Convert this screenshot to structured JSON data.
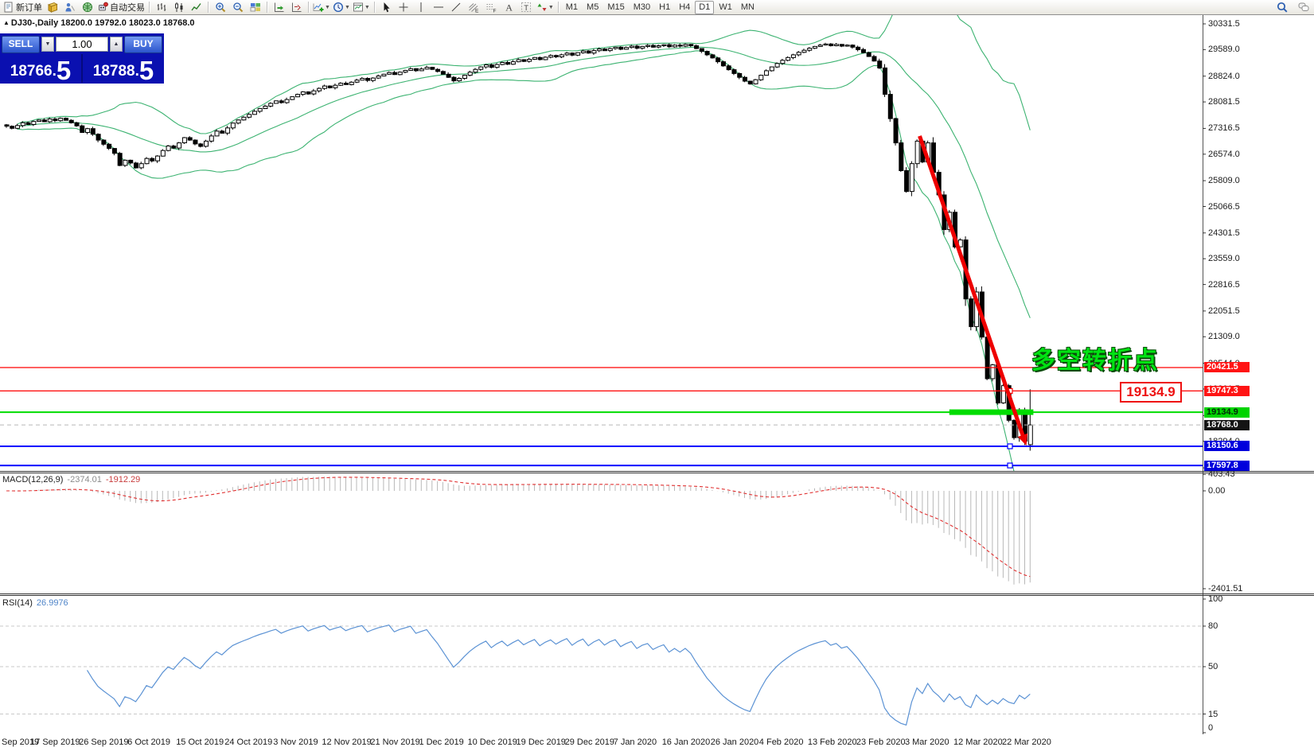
{
  "toolbar": {
    "left_items": [
      {
        "name": "new-order-button",
        "icon": "doc",
        "label": "新订单"
      },
      {
        "name": "market-watch-icon",
        "icon": "book"
      },
      {
        "name": "data-window-icon",
        "icon": "person"
      },
      {
        "name": "news-icon",
        "icon": "globe"
      },
      {
        "name": "auto-trading-button",
        "icon": "robot",
        "label": "自动交易"
      },
      {
        "sep": true
      },
      {
        "name": "bar-chart-type-button",
        "icon": "bars"
      },
      {
        "name": "candlestick-chart-type-button",
        "icon": "candles"
      },
      {
        "name": "line-chart-type-button",
        "icon": "linechart"
      },
      {
        "sep": true
      },
      {
        "name": "zoom-in-button",
        "icon": "zoomin"
      },
      {
        "name": "zoom-out-button",
        "icon": "zoomout"
      },
      {
        "name": "tile-windows-button",
        "icon": "tiles"
      },
      {
        "sep": true
      },
      {
        "name": "auto-scroll-button",
        "icon": "autoscroll"
      },
      {
        "name": "chart-shift-button",
        "icon": "shift"
      },
      {
        "sep": true
      },
      {
        "name": "indicators-button",
        "icon": "indicator",
        "dropdown": true
      },
      {
        "name": "periods-button",
        "icon": "clock",
        "dropdown": true
      },
      {
        "name": "templates-button",
        "icon": "template",
        "dropdown": true
      },
      {
        "sep": true
      },
      {
        "name": "cursor-button",
        "icon": "cursor"
      },
      {
        "name": "crosshair-button",
        "icon": "crosshair"
      },
      {
        "name": "vertical-line-button",
        "icon": "vline"
      },
      {
        "name": "horizontal-line-button",
        "icon": "hline"
      },
      {
        "name": "trendline-button",
        "icon": "tline"
      },
      {
        "name": "equidistant-channel-button",
        "icon": "fiboE"
      },
      {
        "name": "fibonacci-button",
        "icon": "gridF"
      },
      {
        "name": "text-button",
        "icon": "textA"
      },
      {
        "name": "text-label-button",
        "icon": "textT"
      },
      {
        "name": "arrows-button",
        "icon": "arrows",
        "dropdown": true
      },
      {
        "sep": true
      }
    ],
    "timeframes": [
      "M1",
      "M5",
      "M15",
      "M30",
      "H1",
      "H4",
      "D1",
      "W1",
      "MN"
    ],
    "active_timeframe": "D1",
    "right_items": [
      {
        "name": "search-button",
        "icon": "search"
      },
      {
        "name": "chat-button",
        "icon": "chat"
      }
    ]
  },
  "symbol_info": {
    "marker": "▲",
    "text": "DJ30-,Daily  18200.0 19792.0 18023.0 18768.0"
  },
  "trade_panel": {
    "sell_label": "SELL",
    "buy_label": "BUY",
    "volume": "1.00",
    "sell_price_main": "18766.",
    "sell_price_pips": "5",
    "buy_price_main": "18788.",
    "buy_price_pips": "5"
  },
  "annotations": {
    "turning_point": "多空转折点",
    "level_label": "19134.9"
  },
  "macd_panel": {
    "name": "MACD(12,26,9)",
    "value_main": "-2374.01",
    "value_signal": "-1912.29",
    "scale_labels": [
      "403.43",
      "0.00",
      "-2401.51"
    ],
    "scale_values": [
      403.43,
      0,
      -2401.51
    ]
  },
  "rsi_panel": {
    "name": "RSI(14)",
    "value": "26.9976",
    "scale_labels": [
      "100",
      "80",
      "50",
      "15",
      "0"
    ],
    "scale_values": [
      100,
      80,
      50,
      15,
      0
    ],
    "levels": [
      80,
      50,
      15
    ]
  },
  "price_axis": {
    "ticks": [
      30331.5,
      29589.0,
      28824.0,
      28081.5,
      27316.5,
      26574.0,
      25809.0,
      25066.5,
      24301.5,
      23559.0,
      22816.5,
      22051.5,
      21309.0,
      20544.0,
      19801.5,
      19036.5,
      18294.0,
      17529.0
    ],
    "badges": [
      {
        "label": "20421.5",
        "price": 20421.5,
        "bg": "#ff1414",
        "fg": "#ffffff"
      },
      {
        "label": "19747.3",
        "price": 19747.3,
        "bg": "#ff1414",
        "fg": "#ffffff"
      },
      {
        "label": "19134.9",
        "price": 19134.9,
        "bg": "#00d400",
        "fg": "#00280a"
      },
      {
        "label": "18768.0",
        "price": 18768.0,
        "bg": "#141414",
        "fg": "#ffffff"
      },
      {
        "label": "18150.6",
        "price": 18150.6,
        "bg": "#0000dc",
        "fg": "#ffffff"
      },
      {
        "label": "17597.8",
        "price": 17597.8,
        "bg": "#0000dc",
        "fg": "#ffffff"
      }
    ]
  },
  "date_axis": [
    "Sep 2019",
    "17 Sep 2019",
    "26 Sep 2019",
    "6 Oct 2019",
    "15 Oct 2019",
    "24 Oct 2019",
    "3 Nov 2019",
    "12 Nov 2019",
    "21 Nov 2019",
    "1 Dec 2019",
    "10 Dec 2019",
    "19 Dec 2019",
    "29 Dec 2019",
    "7 Jan 2020",
    "16 Jan 2020",
    "26 Jan 2020",
    "4 Feb 2020",
    "13 Feb 2020",
    "23 Feb 2020",
    "3 Mar 2020",
    "12 Mar 2020",
    "22 Mar 2020"
  ],
  "chart_data": {
    "type": "candlestick",
    "symbol": "DJ30-",
    "timeframe": "Daily",
    "closes": [
      27380,
      27320,
      27400,
      27480,
      27430,
      27520,
      27560,
      27510,
      27590,
      27540,
      27610,
      27550,
      27480,
      27390,
      27200,
      27310,
      27150,
      26980,
      26860,
      26740,
      26600,
      26250,
      26400,
      26320,
      26180,
      26300,
      26450,
      26380,
      26520,
      26680,
      26810,
      26750,
      26900,
      27050,
      26980,
      26870,
      26800,
      26950,
      27100,
      27240,
      27180,
      27330,
      27470,
      27560,
      27640,
      27720,
      27810,
      27890,
      27960,
      28040,
      28110,
      28060,
      28150,
      28230,
      28300,
      28370,
      28310,
      28400,
      28470,
      28540,
      28490,
      28560,
      28620,
      28580,
      28650,
      28710,
      28760,
      28700,
      28770,
      28830,
      28880,
      28930,
      28870,
      28940,
      28990,
      29040,
      28980,
      29030,
      29080,
      29020,
      28960,
      28880,
      28790,
      28690,
      28760,
      28850,
      28940,
      29020,
      29090,
      29150,
      29080,
      29160,
      29220,
      29170,
      29240,
      29300,
      29250,
      29310,
      29360,
      29300,
      29370,
      29420,
      29380,
      29440,
      29490,
      29430,
      29500,
      29550,
      29490,
      29560,
      29610,
      29560,
      29620,
      29660,
      29600,
      29650,
      29690,
      29630,
      29680,
      29710,
      29660,
      29700,
      29730,
      29670,
      29720,
      29690,
      29740,
      29700,
      29620,
      29540,
      29440,
      29350,
      29240,
      29120,
      29010,
      28900,
      28790,
      28680,
      28600,
      28720,
      28850,
      28980,
      29090,
      29190,
      29280,
      29360,
      29440,
      29510,
      29570,
      29630,
      29680,
      29720,
      29750,
      29700,
      29740,
      29690,
      29720,
      29660,
      29590,
      29500,
      29390,
      29260,
      29060,
      28300,
      27600,
      26900,
      26100,
      25500,
      26300,
      26950,
      26350,
      26900,
      26050,
      25400,
      24400,
      24900,
      23900,
      24100,
      22400,
      21600,
      22600,
      21300,
      20100,
      20500,
      19400,
      19900,
      18900,
      18400,
      19200,
      18300,
      18768
    ],
    "last_candle_ohlc": [
      18200.0,
      19792.0,
      18023.0,
      18768.0
    ],
    "bollinger_period": 20,
    "horizontal_lines": [
      {
        "price": 20421.5,
        "color": "#ff0000",
        "width": 1.2
      },
      {
        "price": 19747.3,
        "color": "#ff0000",
        "width": 1.2,
        "handle": true
      },
      {
        "price": 19134.9,
        "color": "#00dd00",
        "width": 2
      },
      {
        "price": 18768.0,
        "color": "#b8b8b8",
        "width": 1,
        "dashed": true
      },
      {
        "price": 18150.6,
        "color": "#0000ff",
        "width": 2,
        "handle": true
      },
      {
        "price": 17597.8,
        "color": "#0000ff",
        "width": 2,
        "handle": true
      }
    ],
    "support_bar": {
      "price": 19134.9,
      "i1": 175,
      "i2": 190.6,
      "color": "#00dd00",
      "thickness": 7
    },
    "trend_arrow": {
      "i1": 169.5,
      "price1": 27100,
      "i2": 189.3,
      "price2": 18170,
      "color": "#ee0000",
      "width": 5
    },
    "macd": {
      "fast": 12,
      "slow": 26,
      "signal_period": 9
    },
    "rsi": {
      "period": 14
    }
  }
}
